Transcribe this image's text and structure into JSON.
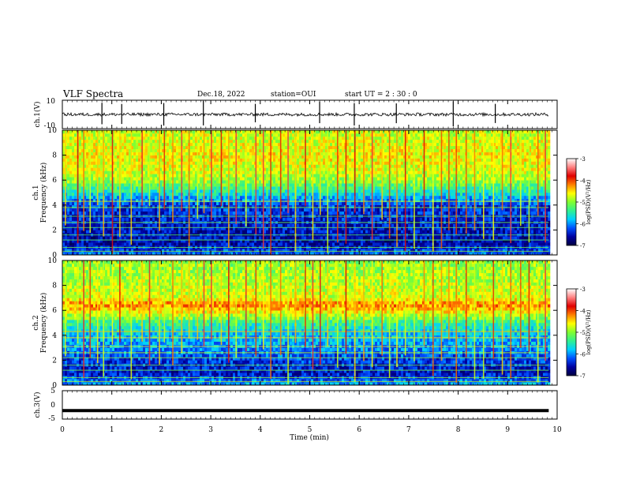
{
  "header": {
    "title": "VLF Spectra",
    "date": "Dec.18, 2022",
    "station": "station=OUI",
    "start": "start UT = 2 : 30 : 0"
  },
  "colors": {
    "colormap": [
      "#000040",
      "#0000a0",
      "#0050ff",
      "#00d0ff",
      "#30f090",
      "#80ff30",
      "#ffff00",
      "#ff8000",
      "#e00000",
      "#ff8080",
      "#ffffff"
    ]
  },
  "chart_data": [
    {
      "type": "line",
      "panel": "waveform ch.1",
      "ylabel": "ch.1(V)",
      "yticks": [
        "10",
        "-10"
      ],
      "ylim": [
        -10,
        10
      ],
      "x_range_min": [
        0,
        9.83
      ],
      "baseline": 0,
      "spikes_min": [
        0.8,
        1.2,
        2.05,
        2.85,
        3.9,
        5.2,
        5.9,
        6.75,
        7.9,
        8.75
      ]
    },
    {
      "type": "heatmap",
      "panel": "spectrogram ch.1",
      "ylabel_a": "ch.1",
      "ylabel_b": "Frequency (kHz)",
      "yticks": [
        "0",
        "2",
        "4",
        "6",
        "8",
        "10"
      ],
      "ylim": [
        0,
        10
      ],
      "colorbar_label": "log(PSD)(V²/Hz)",
      "colorbar_ticks": [
        "-3",
        "-4",
        "-5",
        "-6",
        "-7"
      ],
      "clim": [
        -7,
        -3
      ],
      "levels": [
        {
          "f_khz": 0,
          "logpsd": -6.1
        },
        {
          "f_khz": 1,
          "logpsd": -6.6
        },
        {
          "f_khz": 2,
          "logpsd": -6.5
        },
        {
          "f_khz": 3,
          "logpsd": -6.4
        },
        {
          "f_khz": 4,
          "logpsd": -6.3
        },
        {
          "f_khz": 5,
          "logpsd": -5.6
        },
        {
          "f_khz": 6,
          "logpsd": -4.9
        },
        {
          "f_khz": 7,
          "logpsd": -4.7
        },
        {
          "f_khz": 8,
          "logpsd": -4.6
        },
        {
          "f_khz": 9,
          "logpsd": -4.7
        },
        {
          "f_khz": 10,
          "logpsd": -4.8
        }
      ]
    },
    {
      "type": "heatmap",
      "panel": "spectrogram ch.2",
      "ylabel_a": "ch.2",
      "ylabel_b": "Frequency (kHz)",
      "yticks": [
        "0",
        "2",
        "4",
        "6",
        "8",
        "10"
      ],
      "ylim": [
        0,
        10
      ],
      "colorbar_label": "log(PSD)(V²/Hz)",
      "colorbar_ticks": [
        "-3",
        "-4",
        "-5",
        "-6",
        "-7"
      ],
      "clim": [
        -7,
        -3
      ],
      "levels": [
        {
          "f_khz": 0,
          "logpsd": -5.9
        },
        {
          "f_khz": 1,
          "logpsd": -6.5
        },
        {
          "f_khz": 2,
          "logpsd": -6.3
        },
        {
          "f_khz": 3,
          "logpsd": -6.0
        },
        {
          "f_khz": 4,
          "logpsd": -5.8
        },
        {
          "f_khz": 5,
          "logpsd": -5.4
        },
        {
          "f_khz": 6,
          "logpsd": -4.5
        },
        {
          "f_khz": 6.5,
          "logpsd": -4.2
        },
        {
          "f_khz": 7,
          "logpsd": -4.7
        },
        {
          "f_khz": 8,
          "logpsd": -4.8
        },
        {
          "f_khz": 9,
          "logpsd": -4.9
        },
        {
          "f_khz": 10,
          "logpsd": -5.0
        }
      ]
    },
    {
      "type": "line",
      "panel": "waveform ch.3",
      "ylabel": "ch.3(V)",
      "yticks": [
        "5",
        "0",
        "-5"
      ],
      "ylim": [
        -5,
        5
      ],
      "x_range_min": [
        0,
        9.83
      ],
      "baseline": -2
    }
  ],
  "x_axis": {
    "xlabel": "Time (min)",
    "xticks": [
      "0",
      "1",
      "2",
      "3",
      "4",
      "5",
      "6",
      "7",
      "8",
      "9",
      "10"
    ],
    "xlim": [
      0,
      10
    ]
  },
  "spike_times_min": [
    0.05,
    0.3,
    0.42,
    0.55,
    0.7,
    0.82,
    1.0,
    1.15,
    1.38,
    1.6,
    1.75,
    1.95,
    2.05,
    2.22,
    2.4,
    2.55,
    2.72,
    2.85,
    3.0,
    3.2,
    3.35,
    3.5,
    3.7,
    3.9,
    4.05,
    4.2,
    4.4,
    4.55,
    4.7,
    4.9,
    5.05,
    5.2,
    5.35,
    5.55,
    5.72,
    5.9,
    6.08,
    6.25,
    6.45,
    6.6,
    6.75,
    6.92,
    7.1,
    7.3,
    7.48,
    7.65,
    7.8,
    7.95,
    8.15,
    8.32,
    8.5,
    8.7,
    8.88,
    9.05,
    9.25,
    9.42,
    9.6,
    9.75
  ]
}
